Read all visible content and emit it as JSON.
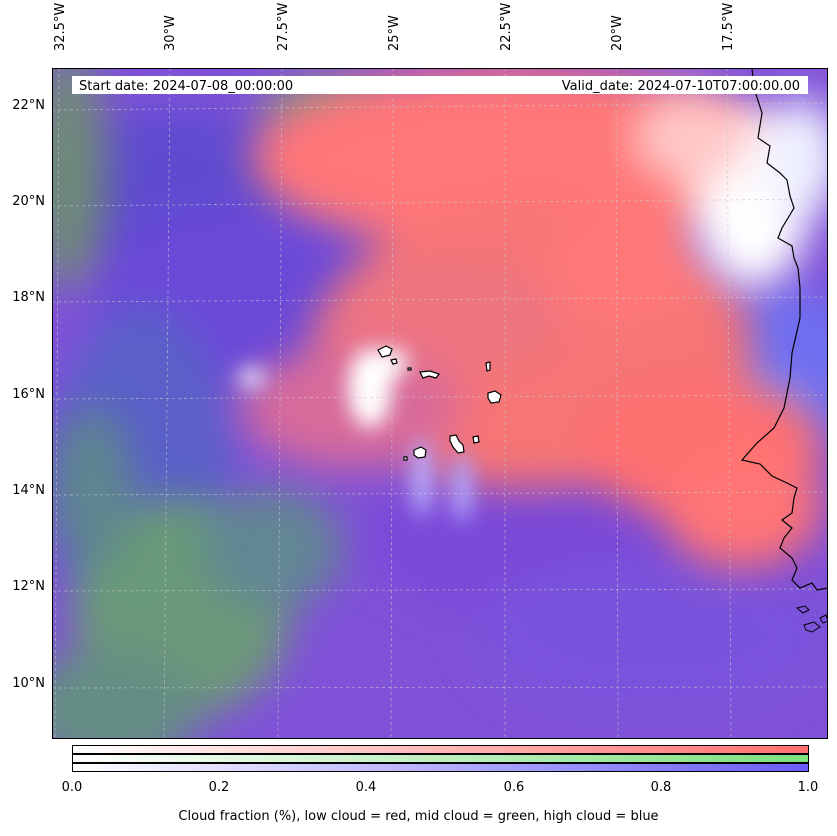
{
  "map": {
    "header": {
      "start_date": "Start date: 2024-07-08_00:00:00",
      "valid_date": "Valid_date: 2024-07-10T07:00:00.00"
    },
    "lon_labels": [
      "32.5°W",
      "30°W",
      "27.5°W",
      "25°W",
      "22.5°W",
      "20°W",
      "17.5°W"
    ],
    "lat_labels": [
      "22°N",
      "20°N",
      "18°N",
      "16°N",
      "14°N",
      "12°N",
      "10°N"
    ],
    "layers": {
      "low_cloud_color": "#ff6f6f",
      "mid_cloud_color": "#7de07d",
      "high_cloud_color": "#6a5cff",
      "clear_color": "#ffffff",
      "coastline_color": "#000000",
      "gridline_color": "#c8c8c8"
    }
  },
  "colorbar": {
    "ticks": [
      "0.0",
      "0.2",
      "0.4",
      "0.6",
      "0.8",
      "1.0"
    ],
    "range": [
      0.0,
      1.0
    ],
    "title": "Cloud fraction (%), low cloud = red, mid cloud = green, high cloud = blue",
    "rows": [
      {
        "name": "low",
        "color": "#ff6f6f"
      },
      {
        "name": "mid",
        "color": "#7de07d"
      },
      {
        "name": "high",
        "color": "#6a5cff"
      }
    ]
  }
}
